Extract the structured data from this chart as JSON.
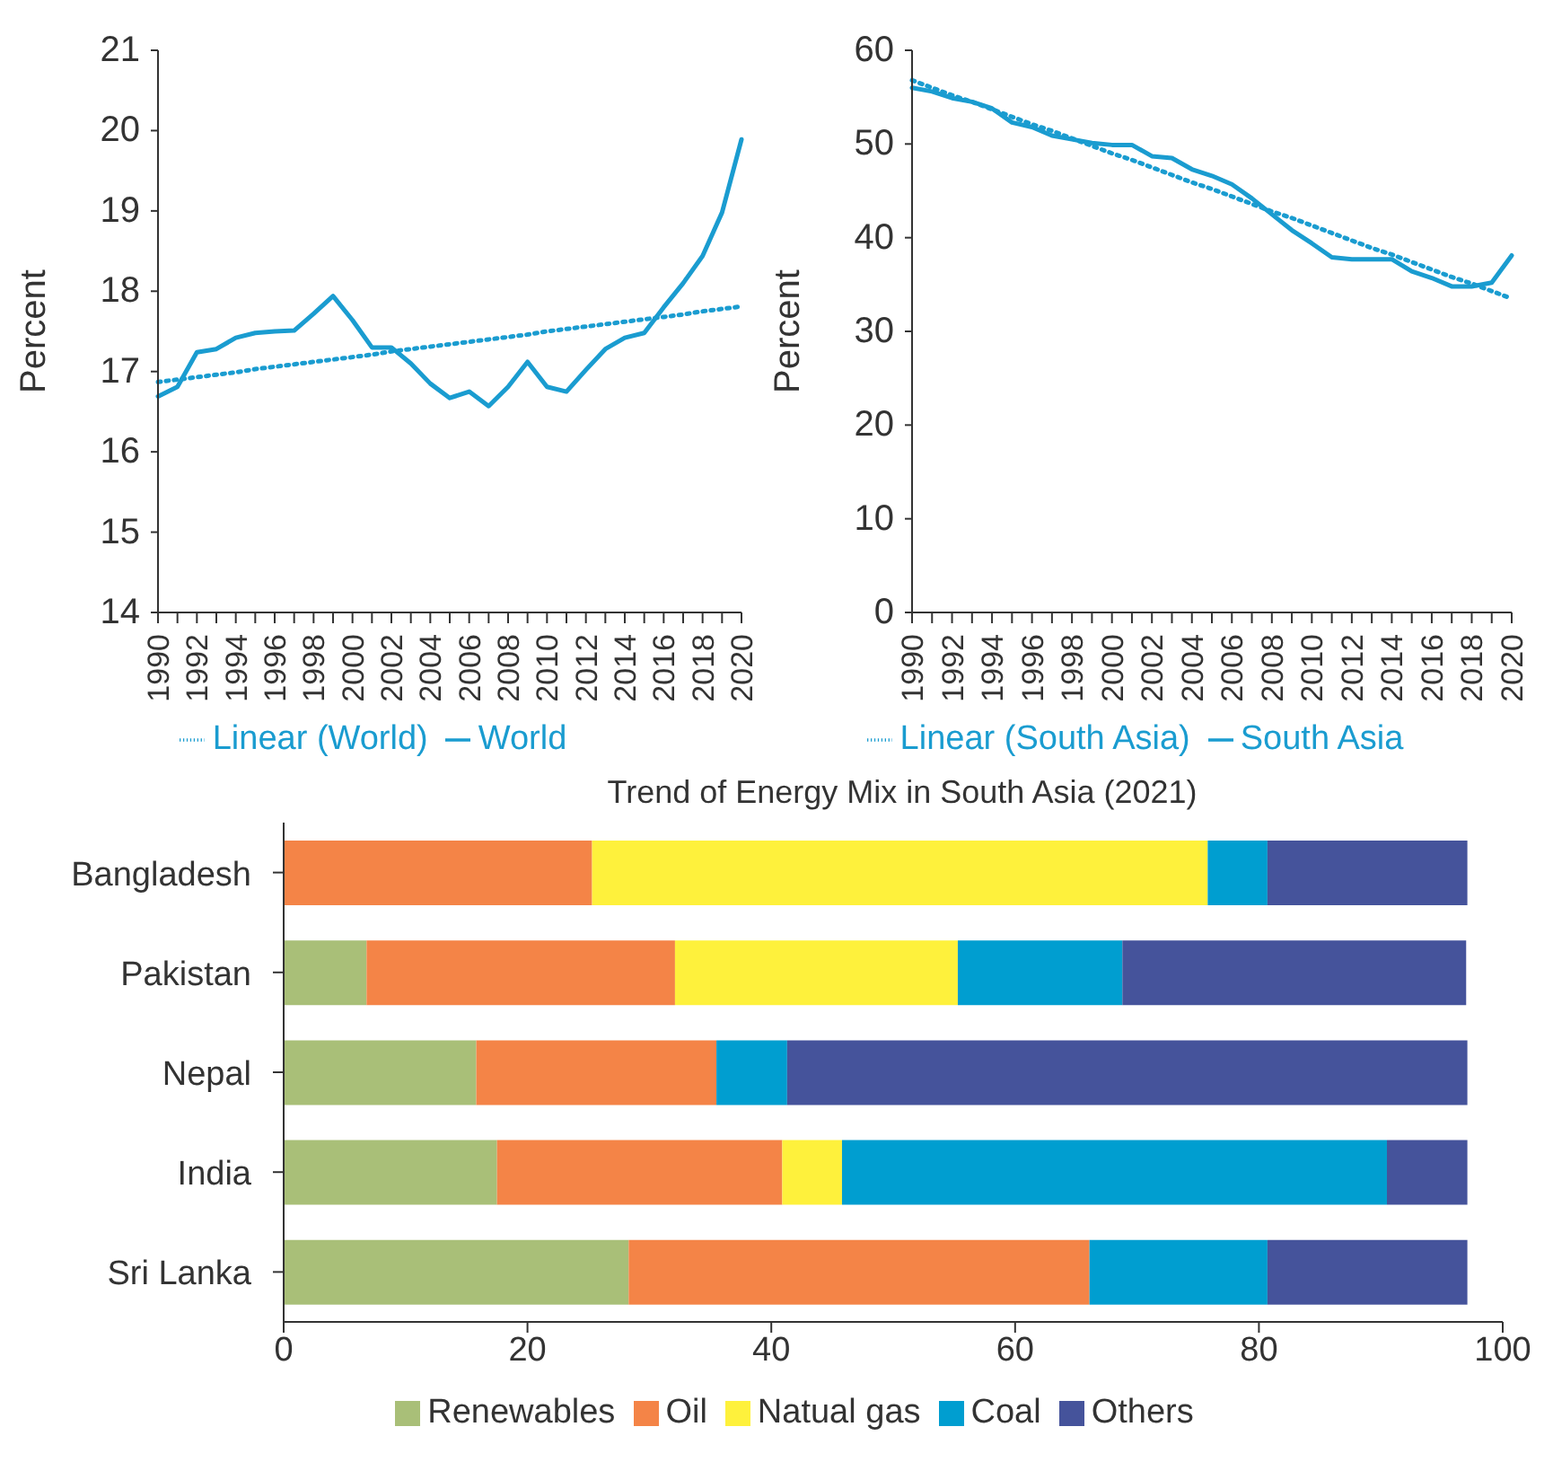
{
  "chart_data": [
    {
      "type": "line",
      "ylabel": "Percent",
      "categories": [
        "1990",
        null,
        "1992",
        null,
        "1994",
        null,
        "1996",
        null,
        "1998",
        null,
        "2000",
        null,
        "2002",
        null,
        "2004",
        null,
        "2006",
        null,
        "2008",
        null,
        "2010",
        null,
        "2012",
        null,
        "2014",
        null,
        "2016",
        null,
        "2018",
        null,
        "2020"
      ],
      "series": [
        {
          "name": "World",
          "color": "#1a9cd0",
          "values": [
            16.69,
            16.81,
            17.24,
            17.28,
            17.42,
            17.48,
            17.5,
            17.51,
            17.72,
            17.94,
            17.64,
            17.3,
            17.3,
            17.1,
            16.85,
            16.67,
            16.75,
            16.57,
            16.81,
            17.12,
            16.81,
            16.75,
            17.02,
            17.28,
            17.42,
            17.48,
            17.8,
            18.1,
            18.44,
            18.98,
            19.89
          ]
        },
        {
          "name": "Linear (World)",
          "color": "#1a9cd0",
          "line_style": "dotted",
          "values": [
            16.87,
            16.9,
            16.93,
            16.96,
            16.99,
            17.03,
            17.06,
            17.09,
            17.12,
            17.15,
            17.18,
            17.21,
            17.25,
            17.28,
            17.31,
            17.34,
            17.37,
            17.4,
            17.43,
            17.46,
            17.5,
            17.53,
            17.56,
            17.59,
            17.62,
            17.65,
            17.68,
            17.71,
            17.75,
            17.78,
            17.81
          ]
        }
      ],
      "ylim": [
        14,
        21
      ],
      "yticks": [
        14,
        15,
        16,
        17,
        18,
        19,
        20,
        21
      ],
      "legend": "bottom"
    },
    {
      "type": "line",
      "ylabel": "Percent",
      "categories": [
        "1990",
        null,
        "1992",
        null,
        "1994",
        null,
        "1996",
        null,
        "1998",
        null,
        "2000",
        null,
        "2002",
        null,
        "2004",
        null,
        "2006",
        null,
        "2008",
        null,
        "2010",
        null,
        "2012",
        null,
        "2014",
        null,
        "2016",
        null,
        "2018",
        null,
        "2020"
      ],
      "series": [
        {
          "name": "South Asia",
          "color": "#1a9cd0",
          "values": [
            56.0,
            55.6,
            54.9,
            54.5,
            53.8,
            52.3,
            51.8,
            50.9,
            50.5,
            50.1,
            49.9,
            49.9,
            48.7,
            48.5,
            47.3,
            46.6,
            45.7,
            44.2,
            42.5,
            40.8,
            39.4,
            37.9,
            37.7,
            37.7,
            37.7,
            36.4,
            35.7,
            34.8,
            34.8,
            35.2,
            38.1
          ]
        },
        {
          "name": "Linear (South Asia)",
          "color": "#1a9cd0",
          "line_style": "dotted",
          "values": [
            56.8,
            56.0,
            55.2,
            54.5,
            53.7,
            52.9,
            52.1,
            51.4,
            50.6,
            49.8,
            49.0,
            48.3,
            47.5,
            46.7,
            45.9,
            45.2,
            44.4,
            43.6,
            42.8,
            42.1,
            41.3,
            40.5,
            39.7,
            38.9,
            38.2,
            37.4,
            36.6,
            35.8,
            35.1,
            34.3,
            33.5
          ]
        }
      ],
      "ylim": [
        0,
        60
      ],
      "yticks": [
        0,
        10,
        20,
        30,
        40,
        50,
        60
      ],
      "legend": "bottom"
    },
    {
      "type": "bar",
      "orientation": "horizontal",
      "stacked": true,
      "title": "Trend of Energy Mix in South Asia (2021)",
      "categories": [
        "Bangladesh",
        "Pakistan",
        "Nepal",
        "India",
        "Sri Lanka"
      ],
      "series": [
        {
          "name": "Renewables",
          "color": "#a9bf78",
          "values": [
            0,
            6.8,
            15.8,
            17.5,
            28.3
          ]
        },
        {
          "name": "Oil",
          "color": "#f48447",
          "values": [
            25.3,
            25.3,
            19.7,
            23.4,
            37.8
          ]
        },
        {
          "name": "Natual gas",
          "color": "#fef13c",
          "values": [
            50.5,
            23.2,
            0,
            4.9,
            0
          ]
        },
        {
          "name": "Coal",
          "color": "#009ed0",
          "values": [
            4.9,
            13.5,
            5.8,
            44.7,
            14.6
          ]
        },
        {
          "name": "Others",
          "color": "#45539b",
          "values": [
            16.4,
            28.2,
            55.8,
            6.6,
            16.4
          ]
        }
      ],
      "xlim": [
        0,
        100
      ],
      "xticks": [
        0,
        20,
        40,
        60,
        80,
        100
      ],
      "legend": "bottom"
    }
  ]
}
